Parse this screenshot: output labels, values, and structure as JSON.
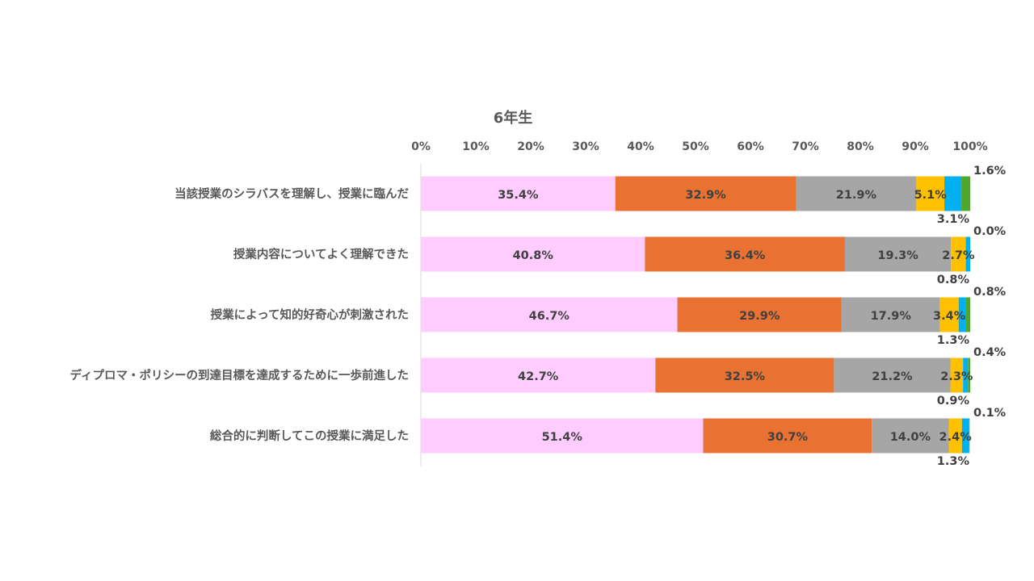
{
  "chart_data": {
    "type": "stacked-bar-horizontal-100",
    "title": "6年生",
    "xlim": [
      0,
      100
    ],
    "x_ticks": [
      "0%",
      "10%",
      "20%",
      "30%",
      "40%",
      "50%",
      "60%",
      "70%",
      "80%",
      "90%",
      "100%"
    ],
    "grid": false,
    "legend": "none",
    "categories": [
      "当該授業のシラバスを理解し、授業に臨んだ",
      "授業内容についてよく理解できた",
      "授業によって知的好奇心が刺激された",
      "ディプロマ・ポリシーの到達目標を達成するために一歩前進した",
      "総合的に判断してこの授業に満足した"
    ],
    "series": [
      {
        "color": "#FFCCFF",
        "values": [
          35.4,
          40.8,
          46.7,
          42.7,
          51.4
        ]
      },
      {
        "color": "#E97132",
        "values": [
          32.9,
          36.4,
          29.9,
          32.5,
          30.7
        ]
      },
      {
        "color": "#A6A6A6",
        "values": [
          21.9,
          19.3,
          17.9,
          21.2,
          14.0
        ]
      },
      {
        "color": "#FFC000",
        "values": [
          5.1,
          2.7,
          3.4,
          2.3,
          2.4
        ]
      },
      {
        "color": "#00B0F0",
        "values": [
          3.1,
          0.8,
          1.3,
          0.9,
          1.3
        ]
      },
      {
        "color": "#4EA72E",
        "values": [
          1.6,
          0.0,
          0.8,
          0.4,
          0.1
        ]
      }
    ],
    "value_format": "percent-1dp"
  }
}
